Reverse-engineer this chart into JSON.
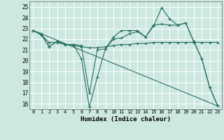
{
  "xlabel": "Humidex (Indice chaleur)",
  "background_color": "#cce8e0",
  "grid_color": "#ffffff",
  "line_color": "#2a6e62",
  "xlim": [
    -0.5,
    23.5
  ],
  "ylim": [
    15.5,
    25.5
  ],
  "xticks": [
    0,
    1,
    2,
    3,
    4,
    5,
    6,
    7,
    8,
    9,
    10,
    11,
    12,
    13,
    14,
    15,
    16,
    17,
    18,
    19,
    20,
    21,
    22,
    23
  ],
  "yticks": [
    16,
    17,
    18,
    19,
    20,
    21,
    22,
    23,
    24,
    25
  ],
  "series1_x": [
    0,
    1,
    2,
    3,
    4,
    5,
    6,
    7,
    8,
    9,
    10,
    11,
    12,
    13,
    14,
    15,
    16,
    17,
    18,
    19,
    20,
    21,
    22,
    23
  ],
  "series1_y": [
    22.8,
    22.5,
    21.3,
    21.8,
    21.5,
    21.5,
    20.2,
    15.7,
    18.5,
    21.1,
    22.2,
    22.8,
    22.8,
    22.8,
    22.2,
    23.2,
    24.9,
    23.9,
    23.3,
    23.5,
    21.8,
    20.2,
    17.5,
    15.8
  ],
  "series2_x": [
    0,
    1,
    2,
    3,
    4,
    5,
    6,
    7,
    8,
    9,
    10,
    11,
    12,
    13,
    14,
    15,
    16,
    17,
    18,
    19,
    20,
    21,
    22,
    23
  ],
  "series2_y": [
    22.8,
    22.4,
    21.7,
    21.7,
    21.5,
    21.5,
    21.4,
    17.0,
    21.0,
    21.1,
    22.0,
    22.1,
    22.5,
    22.7,
    22.2,
    23.3,
    23.4,
    23.3,
    23.3,
    23.5,
    21.8,
    20.2,
    17.5,
    15.8
  ],
  "series3_x": [
    0,
    1,
    2,
    3,
    4,
    5,
    6,
    7,
    8,
    9,
    10,
    11,
    12,
    13,
    14,
    15,
    16,
    17,
    18,
    19,
    20,
    21,
    22,
    23
  ],
  "series3_y": [
    22.8,
    22.4,
    21.3,
    21.8,
    21.5,
    21.4,
    21.3,
    21.2,
    21.2,
    21.3,
    21.4,
    21.5,
    21.5,
    21.6,
    21.6,
    21.7,
    21.7,
    21.7,
    21.7,
    21.7,
    21.7,
    21.7,
    21.7,
    21.7
  ],
  "series4_x": [
    0,
    23
  ],
  "series4_y": [
    22.8,
    15.8
  ]
}
